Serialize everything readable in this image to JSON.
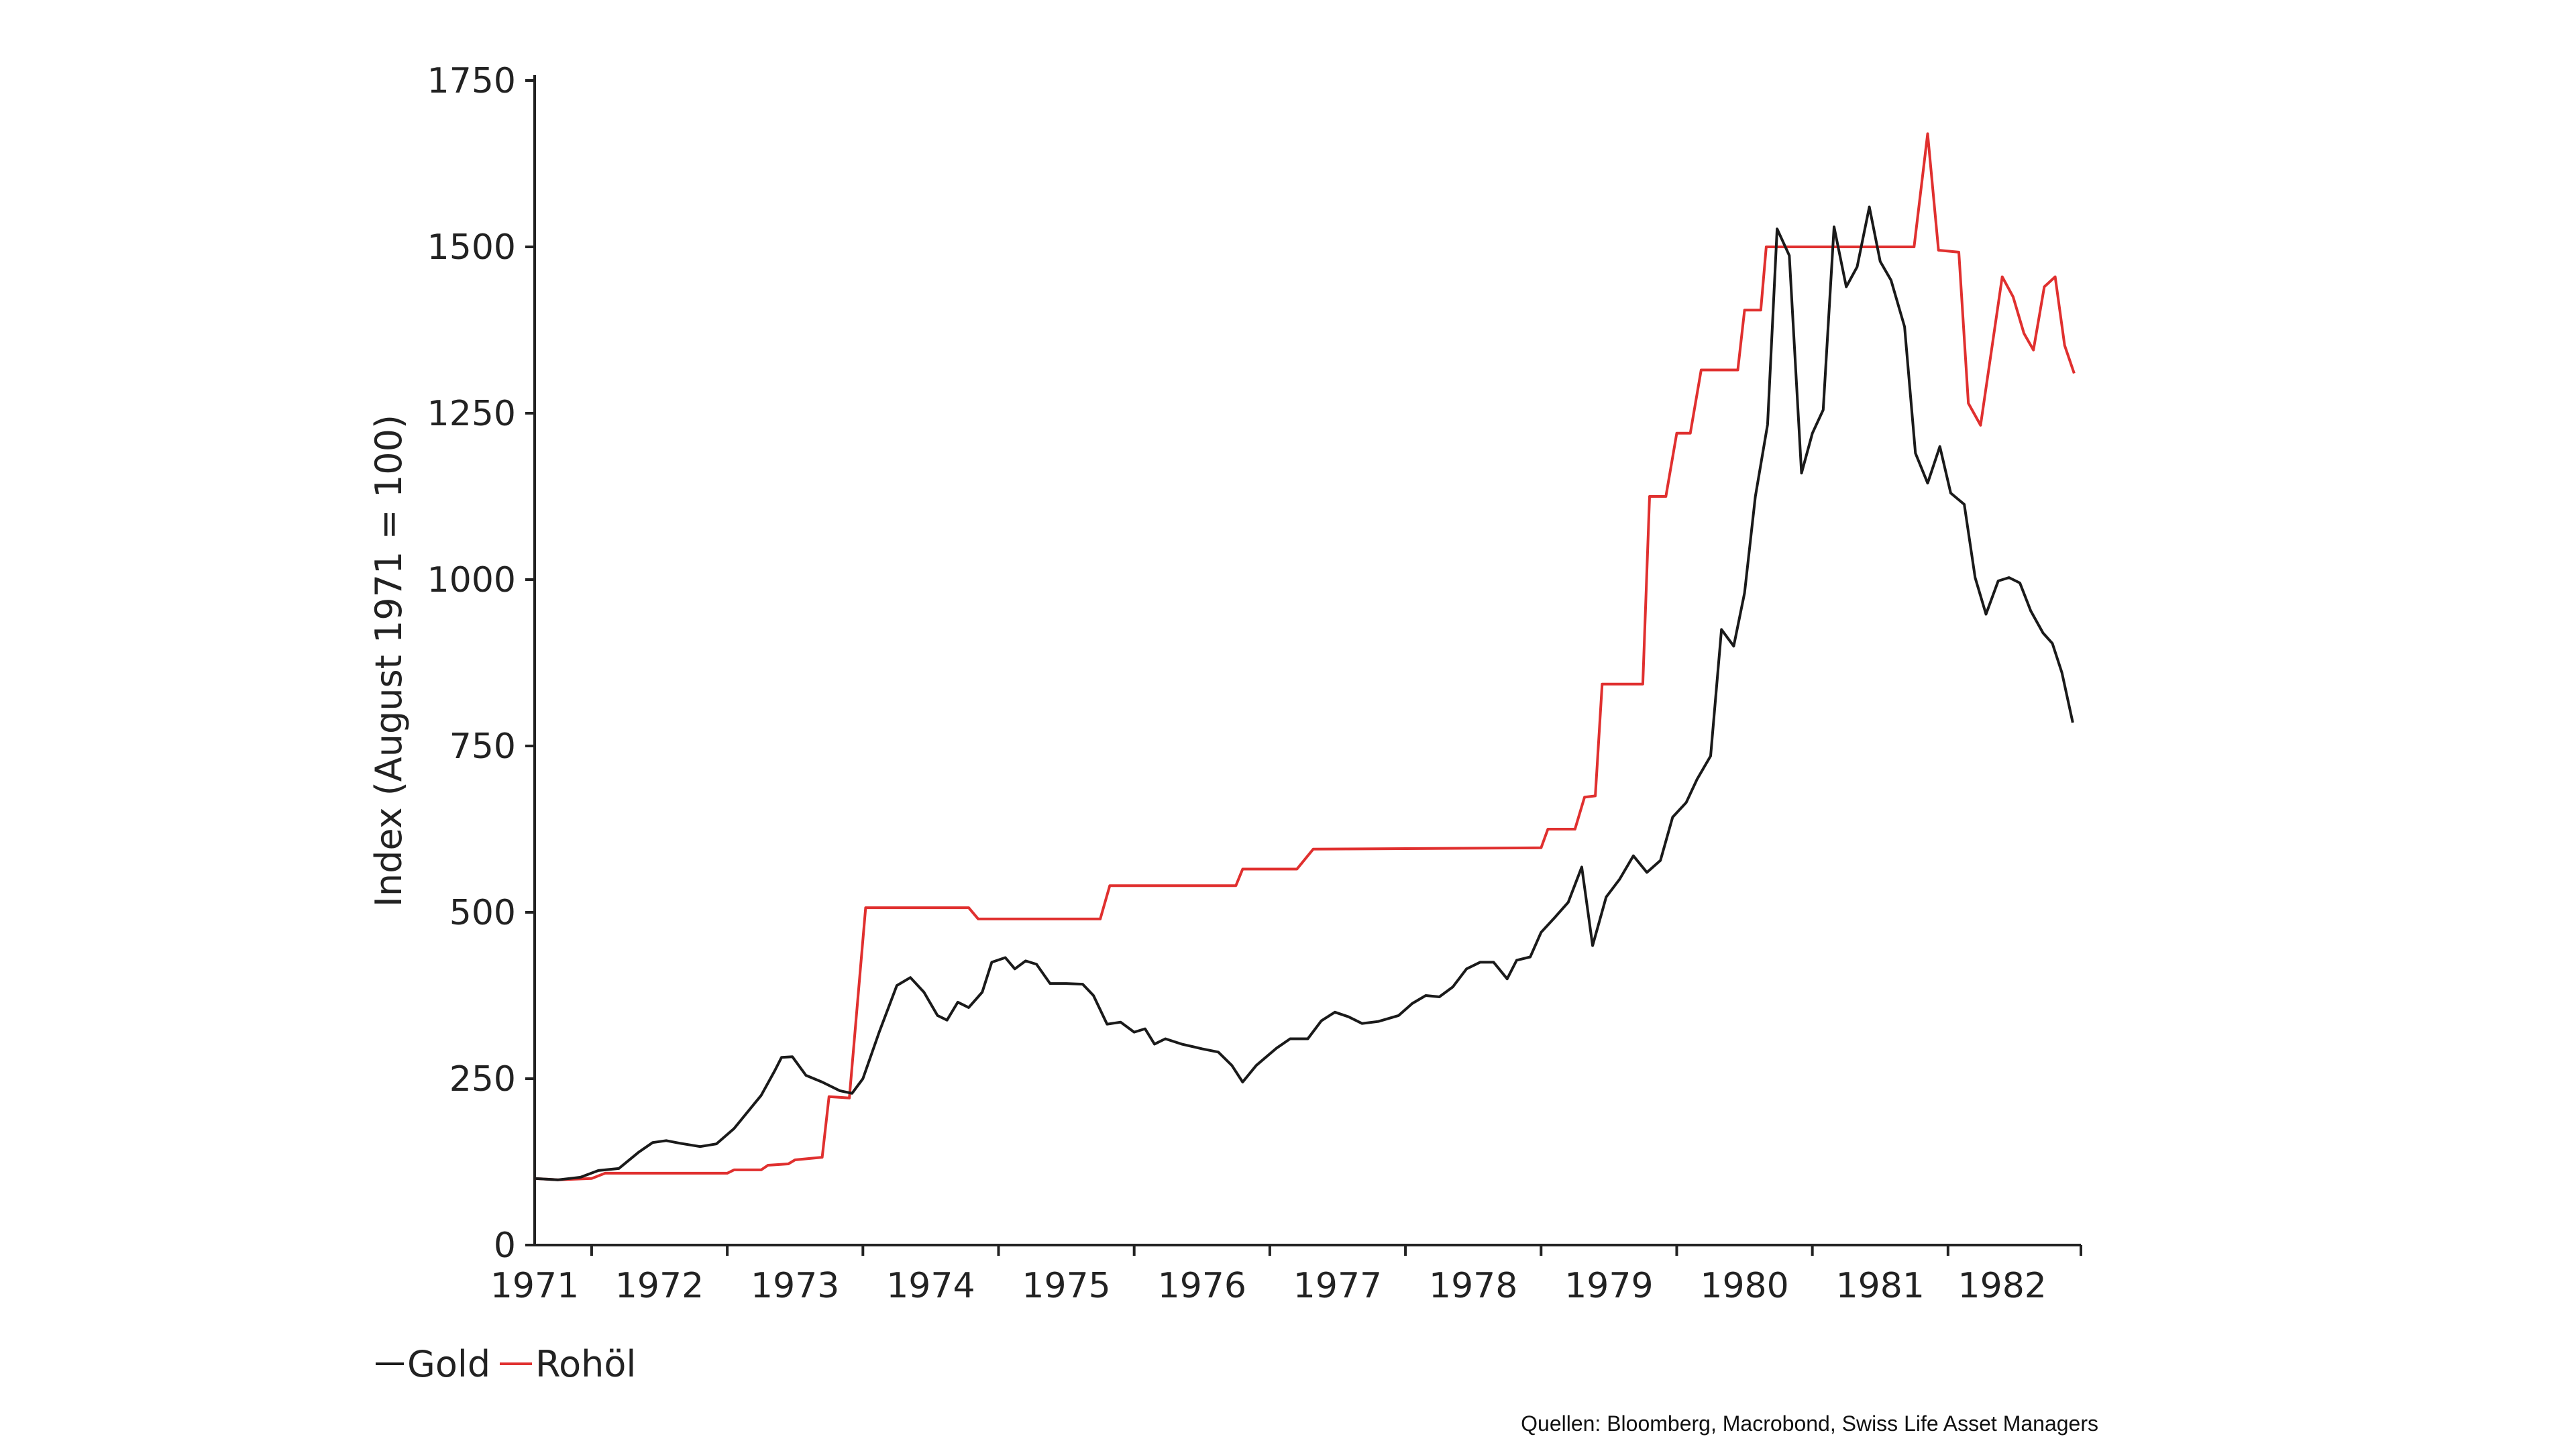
{
  "colors": {
    "gold": "#1a1a1a",
    "oil": "#e0302f",
    "axis": "#222222",
    "background": "#ffffff"
  },
  "legend": {
    "gold_label": "Gold",
    "oil_label": "Rohöl"
  },
  "source": "Quellen: Bloomberg, Macrobond, Swiss Life Asset Managers",
  "chart_data": {
    "type": "line",
    "title": "",
    "xlabel": "",
    "ylabel": "Index (August 1971 = 100)",
    "xlim": [
      1971.58,
      1982.98
    ],
    "ylim": [
      0,
      1750
    ],
    "yticks": [
      0,
      250,
      500,
      750,
      1000,
      1250,
      1500,
      1750
    ],
    "xticks": [
      {
        "label": "1971",
        "at": 1971.58,
        "tick": false
      },
      {
        "label": "1972",
        "at": 1972.5,
        "tick": 1972.0
      },
      {
        "label": "1973",
        "at": 1973.5,
        "tick": 1973.0
      },
      {
        "label": "1974",
        "at": 1974.5,
        "tick": 1974.0
      },
      {
        "label": "1975",
        "at": 1975.5,
        "tick": 1975.0
      },
      {
        "label": "1976",
        "at": 1976.5,
        "tick": 1976.0
      },
      {
        "label": "1977",
        "at": 1977.5,
        "tick": 1977.0
      },
      {
        "label": "1978",
        "at": 1978.5,
        "tick": 1978.0
      },
      {
        "label": "1979",
        "at": 1979.5,
        "tick": 1979.0
      },
      {
        "label": "1980",
        "at": 1980.5,
        "tick": 1980.0
      },
      {
        "label": "1981",
        "at": 1981.5,
        "tick": 1981.0
      },
      {
        "label": "1982",
        "at": 1982.4,
        "tick": 1982.0
      }
    ],
    "series": [
      {
        "name": "Gold",
        "color": "#1a1a1a",
        "points": [
          [
            1971.58,
            100
          ],
          [
            1971.75,
            98
          ],
          [
            1971.92,
            102
          ],
          [
            1972.05,
            112
          ],
          [
            1972.2,
            115
          ],
          [
            1972.35,
            140
          ],
          [
            1972.45,
            154
          ],
          [
            1972.55,
            157
          ],
          [
            1972.65,
            153
          ],
          [
            1972.8,
            148
          ],
          [
            1972.92,
            152
          ],
          [
            1973.05,
            175
          ],
          [
            1973.15,
            200
          ],
          [
            1973.25,
            225
          ],
          [
            1973.35,
            262
          ],
          [
            1973.4,
            282
          ],
          [
            1973.48,
            283
          ],
          [
            1973.58,
            255
          ],
          [
            1973.7,
            245
          ],
          [
            1973.83,
            232
          ],
          [
            1973.92,
            228
          ],
          [
            1974.0,
            250
          ],
          [
            1974.12,
            320
          ],
          [
            1974.25,
            390
          ],
          [
            1974.35,
            402
          ],
          [
            1974.45,
            380
          ],
          [
            1974.55,
            345
          ],
          [
            1974.62,
            338
          ],
          [
            1974.7,
            365
          ],
          [
            1974.78,
            357
          ],
          [
            1974.88,
            380
          ],
          [
            1974.95,
            425
          ],
          [
            1975.05,
            432
          ],
          [
            1975.12,
            415
          ],
          [
            1975.2,
            427
          ],
          [
            1975.28,
            422
          ],
          [
            1975.38,
            393
          ],
          [
            1975.5,
            393
          ],
          [
            1975.62,
            392
          ],
          [
            1975.7,
            375
          ],
          [
            1975.8,
            332
          ],
          [
            1975.9,
            335
          ],
          [
            1976.0,
            320
          ],
          [
            1976.08,
            325
          ],
          [
            1976.15,
            302
          ],
          [
            1976.23,
            310
          ],
          [
            1976.35,
            302
          ],
          [
            1976.5,
            295
          ],
          [
            1976.62,
            290
          ],
          [
            1976.72,
            270
          ],
          [
            1976.8,
            245
          ],
          [
            1976.9,
            270
          ],
          [
            1977.05,
            296
          ],
          [
            1977.15,
            310
          ],
          [
            1977.28,
            310
          ],
          [
            1977.38,
            337
          ],
          [
            1977.48,
            350
          ],
          [
            1977.58,
            343
          ],
          [
            1977.68,
            333
          ],
          [
            1977.8,
            336
          ],
          [
            1977.95,
            345
          ],
          [
            1978.05,
            363
          ],
          [
            1978.15,
            375
          ],
          [
            1978.25,
            373
          ],
          [
            1978.35,
            388
          ],
          [
            1978.45,
            415
          ],
          [
            1978.55,
            425
          ],
          [
            1978.65,
            425
          ],
          [
            1978.75,
            400
          ],
          [
            1978.82,
            428
          ],
          [
            1978.92,
            433
          ],
          [
            1979.0,
            470
          ],
          [
            1979.1,
            492
          ],
          [
            1979.2,
            515
          ],
          [
            1979.3,
            568
          ],
          [
            1979.38,
            450
          ],
          [
            1979.48,
            523
          ],
          [
            1979.58,
            550
          ],
          [
            1979.68,
            585
          ],
          [
            1979.78,
            560
          ],
          [
            1979.88,
            578
          ],
          [
            1979.97,
            643
          ],
          [
            1980.07,
            665
          ],
          [
            1980.15,
            700
          ],
          [
            1980.25,
            735
          ],
          [
            1980.33,
            925
          ],
          [
            1980.42,
            900
          ],
          [
            1980.5,
            980
          ],
          [
            1980.58,
            1125
          ],
          [
            1980.67,
            1233
          ],
          [
            1980.74,
            1527
          ],
          [
            1980.83,
            1487
          ],
          [
            1980.92,
            1160
          ],
          [
            1981.0,
            1220
          ],
          [
            1981.08,
            1255
          ],
          [
            1981.16,
            1530
          ],
          [
            1981.25,
            1440
          ],
          [
            1981.33,
            1470
          ],
          [
            1981.42,
            1560
          ],
          [
            1981.5,
            1478
          ],
          [
            1981.58,
            1450
          ],
          [
            1981.68,
            1380
          ],
          [
            1981.76,
            1190
          ],
          [
            1981.85,
            1145
          ],
          [
            1981.94,
            1200
          ],
          [
            1982.02,
            1130
          ],
          [
            1982.12,
            1113
          ],
          [
            1982.2,
            1003
          ],
          [
            1982.28,
            948
          ],
          [
            1982.37,
            998
          ],
          [
            1982.45,
            1003
          ],
          [
            1982.53,
            995
          ],
          [
            1982.61,
            953
          ],
          [
            1982.7,
            920
          ],
          [
            1982.77,
            904
          ],
          [
            1982.84,
            860
          ],
          [
            1982.92,
            785
          ]
        ]
      },
      {
        "name": "Rohöl",
        "color": "#e0302f",
        "points": [
          [
            1971.58,
            100
          ],
          [
            1971.75,
            98
          ],
          [
            1972.0,
            100
          ],
          [
            1972.1,
            108
          ],
          [
            1972.6,
            108
          ],
          [
            1973.0,
            108
          ],
          [
            1973.05,
            113
          ],
          [
            1973.25,
            113
          ],
          [
            1973.3,
            120
          ],
          [
            1973.45,
            122
          ],
          [
            1973.5,
            128
          ],
          [
            1973.7,
            132
          ],
          [
            1973.75,
            223
          ],
          [
            1973.9,
            221
          ],
          [
            1974.02,
            507
          ],
          [
            1974.78,
            507
          ],
          [
            1974.85,
            490
          ],
          [
            1975.75,
            490
          ],
          [
            1975.82,
            540
          ],
          [
            1976.6,
            540
          ],
          [
            1976.75,
            540
          ],
          [
            1976.8,
            565
          ],
          [
            1977.2,
            565
          ],
          [
            1977.32,
            595
          ],
          [
            1979.0,
            597
          ],
          [
            1979.05,
            625
          ],
          [
            1979.25,
            625
          ],
          [
            1979.32,
            673
          ],
          [
            1979.4,
            675
          ],
          [
            1979.45,
            843
          ],
          [
            1979.6,
            843
          ],
          [
            1979.75,
            843
          ],
          [
            1979.8,
            1125
          ],
          [
            1979.92,
            1125
          ],
          [
            1980.0,
            1220
          ],
          [
            1980.1,
            1220
          ],
          [
            1980.18,
            1315
          ],
          [
            1980.45,
            1315
          ],
          [
            1980.5,
            1405
          ],
          [
            1980.62,
            1405
          ],
          [
            1980.66,
            1500
          ],
          [
            1981.0,
            1500
          ],
          [
            1981.75,
            1500
          ],
          [
            1981.85,
            1670
          ],
          [
            1981.93,
            1495
          ],
          [
            1982.08,
            1492
          ],
          [
            1982.15,
            1265
          ],
          [
            1982.24,
            1232
          ],
          [
            1982.4,
            1455
          ],
          [
            1982.48,
            1425
          ],
          [
            1982.56,
            1370
          ],
          [
            1982.63,
            1345
          ],
          [
            1982.71,
            1440
          ],
          [
            1982.79,
            1455
          ],
          [
            1982.86,
            1352
          ],
          [
            1982.93,
            1310
          ]
        ]
      }
    ]
  }
}
